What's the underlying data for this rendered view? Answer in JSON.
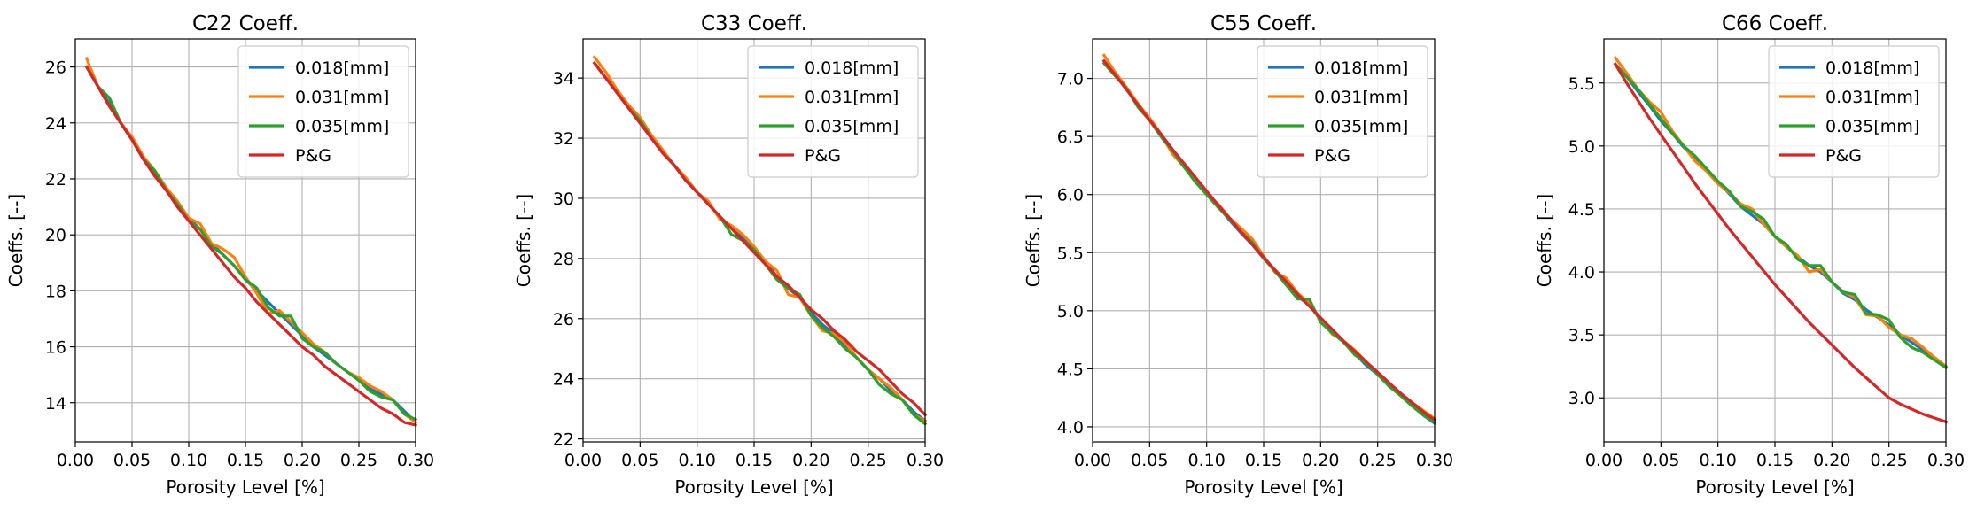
{
  "chart_data": [
    {
      "type": "line",
      "title": "C22 Coeff.",
      "xlabel": "Porosity Level [%]",
      "ylabel": "Coeffs. [--]",
      "xlim": [
        0,
        0.3
      ],
      "ylim": [
        12.6,
        27.0
      ],
      "xticks": [
        0.0,
        0.05,
        0.1,
        0.15,
        0.2,
        0.25,
        0.3
      ],
      "xtick_labels": [
        "0.00",
        "0.05",
        "0.10",
        "0.15",
        "0.20",
        "0.25",
        "0.30"
      ],
      "yticks": [
        14,
        16,
        18,
        20,
        22,
        24,
        26
      ],
      "ytick_labels": [
        "14",
        "16",
        "18",
        "20",
        "22",
        "24",
        "26"
      ],
      "grid": true,
      "legend_position": "top-right",
      "x": [
        0.01,
        0.02,
        0.03,
        0.04,
        0.05,
        0.06,
        0.07,
        0.08,
        0.09,
        0.1,
        0.11,
        0.12,
        0.13,
        0.14,
        0.15,
        0.16,
        0.17,
        0.18,
        0.19,
        0.2,
        0.21,
        0.22,
        0.23,
        0.24,
        0.25,
        0.26,
        0.27,
        0.28,
        0.29,
        0.3
      ],
      "series": [
        {
          "name": "0.018[mm]",
          "color": "#1f77b4",
          "values": [
            26.0,
            25.3,
            24.7,
            24.0,
            23.4,
            22.7,
            22.2,
            21.6,
            21.1,
            20.6,
            20.2,
            19.7,
            19.3,
            18.9,
            18.4,
            18.0,
            17.6,
            17.2,
            16.8,
            16.4,
            16.0,
            15.7,
            15.4,
            15.1,
            14.8,
            14.5,
            14.3,
            14.1,
            13.7,
            13.3
          ]
        },
        {
          "name": "0.031[mm]",
          "color": "#ff7f0e",
          "values": [
            26.3,
            25.3,
            24.6,
            24.0,
            23.5,
            22.8,
            22.3,
            21.7,
            21.2,
            20.6,
            20.4,
            19.7,
            19.5,
            19.2,
            18.5,
            17.9,
            17.2,
            17.3,
            16.9,
            16.5,
            16.1,
            15.8,
            15.4,
            15.1,
            14.9,
            14.6,
            14.4,
            14.1,
            13.6,
            13.3
          ]
        },
        {
          "name": "0.035[mm]",
          "color": "#2ca02c",
          "values": [
            26.0,
            25.3,
            24.9,
            24.0,
            23.4,
            22.7,
            22.3,
            21.6,
            21.1,
            20.5,
            20.2,
            19.6,
            19.3,
            18.9,
            18.4,
            18.1,
            17.4,
            17.1,
            17.1,
            16.3,
            16.0,
            15.8,
            15.4,
            15.1,
            14.8,
            14.4,
            14.2,
            14.1,
            13.6,
            13.4
          ]
        },
        {
          "name": "P&G",
          "color": "#d62728",
          "values": [
            26.0,
            25.3,
            24.6,
            24.0,
            23.4,
            22.7,
            22.1,
            21.6,
            21.0,
            20.5,
            20.0,
            19.5,
            19.0,
            18.5,
            18.1,
            17.6,
            17.2,
            16.8,
            16.4,
            16.0,
            15.7,
            15.3,
            15.0,
            14.7,
            14.4,
            14.1,
            13.8,
            13.6,
            13.3,
            13.2
          ]
        }
      ]
    },
    {
      "type": "line",
      "title": "C33 Coeff.",
      "xlabel": "Porosity Level [%]",
      "ylabel": "Coeffs. [--]",
      "xlim": [
        0,
        0.3
      ],
      "ylim": [
        21.9,
        35.3
      ],
      "xticks": [
        0.0,
        0.05,
        0.1,
        0.15,
        0.2,
        0.25,
        0.3
      ],
      "xtick_labels": [
        "0.00",
        "0.05",
        "0.10",
        "0.15",
        "0.20",
        "0.25",
        "0.30"
      ],
      "yticks": [
        22,
        24,
        26,
        28,
        30,
        32,
        34
      ],
      "ytick_labels": [
        "22",
        "24",
        "26",
        "28",
        "30",
        "32",
        "34"
      ],
      "grid": true,
      "legend_position": "top-right",
      "x": [
        0.01,
        0.02,
        0.03,
        0.04,
        0.05,
        0.06,
        0.07,
        0.08,
        0.09,
        0.1,
        0.11,
        0.12,
        0.13,
        0.14,
        0.15,
        0.16,
        0.17,
        0.18,
        0.19,
        0.2,
        0.21,
        0.22,
        0.23,
        0.24,
        0.25,
        0.26,
        0.27,
        0.28,
        0.29,
        0.3
      ],
      "series": [
        {
          "name": "0.018[mm]",
          "color": "#1f77b4",
          "values": [
            34.5,
            34.0,
            33.6,
            33.0,
            32.5,
            32.0,
            31.5,
            31.1,
            30.6,
            30.2,
            29.8,
            29.4,
            29.0,
            28.7,
            28.3,
            27.9,
            27.4,
            27.0,
            26.7,
            26.2,
            25.8,
            25.5,
            25.1,
            24.7,
            24.3,
            24.0,
            23.6,
            23.3,
            22.9,
            22.6
          ]
        },
        {
          "name": "0.031[mm]",
          "color": "#ff7f0e",
          "values": [
            34.7,
            34.2,
            33.6,
            33.1,
            32.7,
            32.1,
            31.6,
            31.1,
            30.7,
            30.2,
            29.9,
            29.3,
            29.1,
            28.8,
            28.4,
            27.9,
            27.6,
            26.8,
            26.7,
            26.1,
            25.6,
            25.5,
            25.2,
            24.7,
            24.3,
            24.0,
            23.7,
            23.3,
            22.8,
            22.6
          ]
        },
        {
          "name": "0.035[mm]",
          "color": "#2ca02c",
          "values": [
            34.5,
            34.0,
            33.5,
            33.0,
            32.6,
            32.0,
            31.5,
            31.1,
            30.6,
            30.2,
            29.8,
            29.4,
            28.8,
            28.6,
            28.3,
            27.8,
            27.3,
            27.0,
            26.8,
            26.1,
            25.7,
            25.4,
            25.0,
            24.7,
            24.3,
            23.8,
            23.5,
            23.3,
            22.8,
            22.5
          ]
        },
        {
          "name": "P&G",
          "color": "#d62728",
          "values": [
            34.5,
            34.0,
            33.5,
            33.0,
            32.5,
            32.0,
            31.5,
            31.1,
            30.6,
            30.2,
            29.8,
            29.4,
            29.0,
            28.6,
            28.2,
            27.8,
            27.4,
            27.1,
            26.7,
            26.3,
            26.0,
            25.6,
            25.3,
            24.9,
            24.6,
            24.3,
            23.9,
            23.5,
            23.2,
            22.8
          ]
        }
      ]
    },
    {
      "type": "line",
      "title": "C55 Coeff.",
      "xlabel": "Porosity Level [%]",
      "ylabel": "Coeffs. [--]",
      "xlim": [
        0,
        0.3
      ],
      "ylim": [
        3.87,
        7.34
      ],
      "xticks": [
        0.0,
        0.05,
        0.1,
        0.15,
        0.2,
        0.25,
        0.3
      ],
      "xtick_labels": [
        "0.00",
        "0.05",
        "0.10",
        "0.15",
        "0.20",
        "0.25",
        "0.30"
      ],
      "yticks": [
        4.0,
        4.5,
        5.0,
        5.5,
        6.0,
        6.5,
        7.0
      ],
      "ytick_labels": [
        "4.0",
        "4.5",
        "5.0",
        "5.5",
        "6.0",
        "6.5",
        "7.0"
      ],
      "grid": true,
      "legend_position": "top-right",
      "x": [
        0.01,
        0.02,
        0.03,
        0.04,
        0.05,
        0.06,
        0.07,
        0.08,
        0.09,
        0.1,
        0.11,
        0.12,
        0.13,
        0.14,
        0.15,
        0.16,
        0.17,
        0.18,
        0.19,
        0.2,
        0.21,
        0.22,
        0.23,
        0.24,
        0.25,
        0.26,
        0.27,
        0.28,
        0.29,
        0.3
      ],
      "series": [
        {
          "name": "0.018[mm]",
          "color": "#1f77b4",
          "values": [
            7.15,
            7.03,
            6.92,
            6.77,
            6.65,
            6.5,
            6.37,
            6.25,
            6.12,
            6.0,
            5.9,
            5.78,
            5.67,
            5.57,
            5.45,
            5.35,
            5.25,
            5.12,
            5.05,
            4.92,
            4.82,
            4.73,
            4.63,
            4.53,
            4.45,
            4.37,
            4.28,
            4.2,
            4.1,
            4.03
          ]
        },
        {
          "name": "0.031[mm]",
          "color": "#ff7f0e",
          "values": [
            7.2,
            7.05,
            6.92,
            6.78,
            6.66,
            6.52,
            6.35,
            6.24,
            6.12,
            6.0,
            5.92,
            5.8,
            5.71,
            5.62,
            5.47,
            5.33,
            5.28,
            5.15,
            5.07,
            4.92,
            4.8,
            4.74,
            4.66,
            4.56,
            4.46,
            4.37,
            4.29,
            4.21,
            4.14,
            4.07
          ]
        },
        {
          "name": "0.035[mm]",
          "color": "#2ca02c",
          "values": [
            7.13,
            7.02,
            6.91,
            6.75,
            6.64,
            6.5,
            6.38,
            6.24,
            6.11,
            6.0,
            5.89,
            5.79,
            5.68,
            5.59,
            5.45,
            5.34,
            5.22,
            5.1,
            5.1,
            4.9,
            4.81,
            4.73,
            4.62,
            4.55,
            4.45,
            4.35,
            4.27,
            4.18,
            4.1,
            4.04
          ]
        },
        {
          "name": "P&G",
          "color": "#d62728",
          "values": [
            7.15,
            7.03,
            6.9,
            6.77,
            6.64,
            6.52,
            6.39,
            6.27,
            6.15,
            6.03,
            5.91,
            5.8,
            5.68,
            5.57,
            5.46,
            5.35,
            5.25,
            5.14,
            5.04,
            4.94,
            4.84,
            4.74,
            4.65,
            4.56,
            4.47,
            4.38,
            4.29,
            4.21,
            4.13,
            4.06
          ]
        }
      ]
    },
    {
      "type": "line",
      "title": "C66 Coeff.",
      "xlabel": "Porosity Level [%]",
      "ylabel": "Coeffs. [--]",
      "xlim": [
        0,
        0.3
      ],
      "ylim": [
        2.65,
        5.85
      ],
      "xticks": [
        0.0,
        0.05,
        0.1,
        0.15,
        0.2,
        0.25,
        0.3
      ],
      "xtick_labels": [
        "0.00",
        "0.05",
        "0.10",
        "0.15",
        "0.20",
        "0.25",
        "0.30"
      ],
      "yticks": [
        3.0,
        3.5,
        4.0,
        4.5,
        5.0,
        5.5
      ],
      "ytick_labels": [
        "3.0",
        "3.5",
        "4.0",
        "4.5",
        "5.0",
        "5.5"
      ],
      "grid": true,
      "legend_position": "top-right",
      "x": [
        0.01,
        0.02,
        0.03,
        0.04,
        0.05,
        0.06,
        0.07,
        0.08,
        0.09,
        0.1,
        0.11,
        0.12,
        0.13,
        0.14,
        0.15,
        0.16,
        0.17,
        0.18,
        0.19,
        0.2,
        0.21,
        0.22,
        0.23,
        0.24,
        0.25,
        0.26,
        0.27,
        0.28,
        0.29,
        0.3
      ],
      "series": [
        {
          "name": "0.018[mm]",
          "color": "#1f77b4",
          "values": [
            5.65,
            5.55,
            5.43,
            5.32,
            5.2,
            5.1,
            4.99,
            4.9,
            4.81,
            4.72,
            4.62,
            4.52,
            4.45,
            4.38,
            4.28,
            4.2,
            4.12,
            4.05,
            4.0,
            3.92,
            3.83,
            3.78,
            3.7,
            3.64,
            3.58,
            3.5,
            3.44,
            3.38,
            3.32,
            3.25
          ]
        },
        {
          "name": "0.031[mm]",
          "color": "#ff7f0e",
          "values": [
            5.7,
            5.58,
            5.45,
            5.35,
            5.27,
            5.12,
            5.0,
            4.88,
            4.8,
            4.7,
            4.63,
            4.54,
            4.5,
            4.38,
            4.28,
            4.2,
            4.13,
            4.0,
            4.02,
            3.92,
            3.84,
            3.8,
            3.66,
            3.65,
            3.56,
            3.5,
            3.47,
            3.4,
            3.32,
            3.25
          ]
        },
        {
          "name": "0.035[mm]",
          "color": "#2ca02c",
          "values": [
            5.65,
            5.55,
            5.45,
            5.33,
            5.22,
            5.1,
            5.0,
            4.92,
            4.82,
            4.72,
            4.64,
            4.52,
            4.48,
            4.42,
            4.28,
            4.22,
            4.1,
            4.05,
            4.05,
            3.92,
            3.84,
            3.82,
            3.67,
            3.66,
            3.62,
            3.48,
            3.4,
            3.36,
            3.3,
            3.24
          ]
        },
        {
          "name": "P&G",
          "color": "#d62728",
          "values": [
            5.65,
            5.5,
            5.36,
            5.22,
            5.09,
            4.96,
            4.83,
            4.7,
            4.58,
            4.46,
            4.34,
            4.23,
            4.12,
            4.01,
            3.9,
            3.8,
            3.7,
            3.6,
            3.51,
            3.42,
            3.33,
            3.24,
            3.16,
            3.08,
            3.0,
            2.95,
            2.91,
            2.87,
            2.84,
            2.81
          ]
        }
      ]
    }
  ]
}
